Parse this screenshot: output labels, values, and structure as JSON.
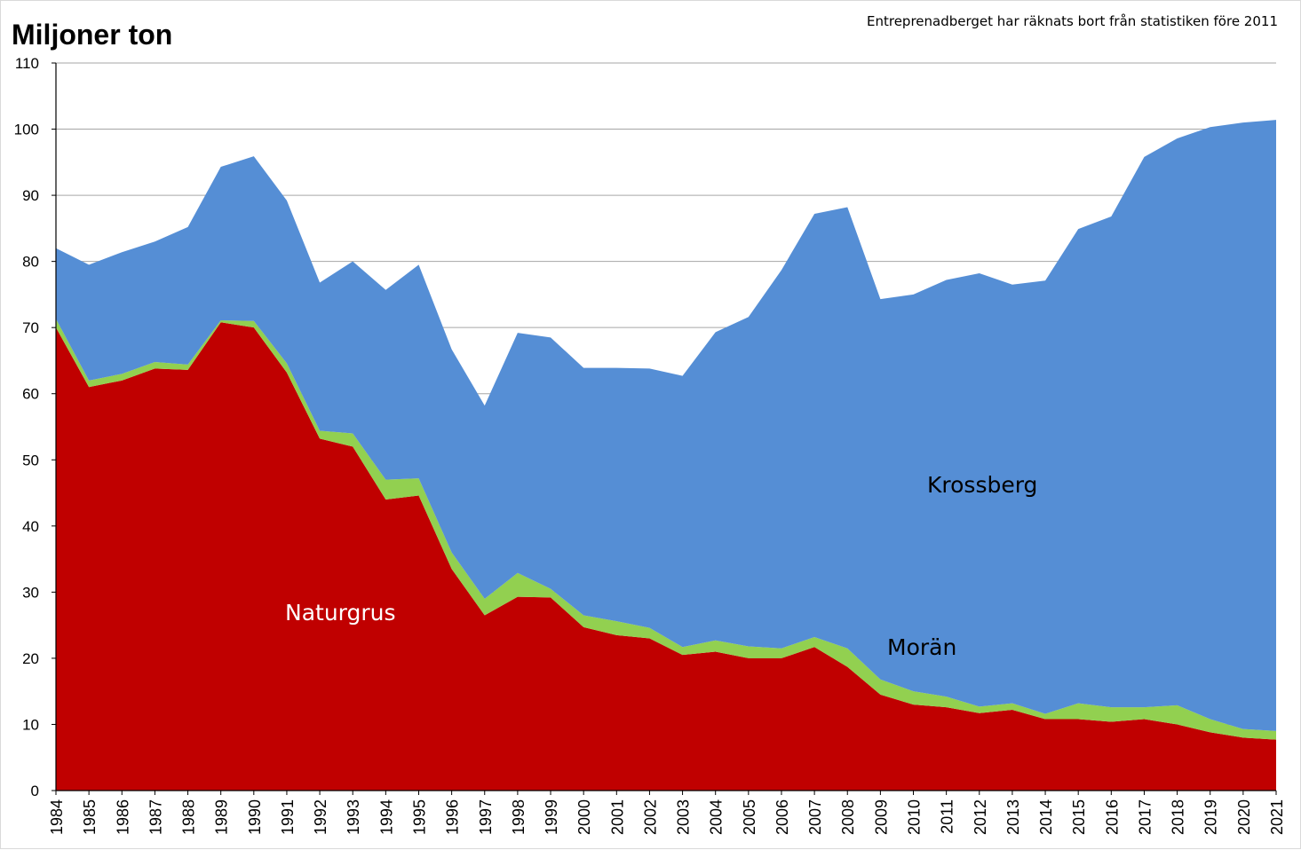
{
  "chart": {
    "title": "Miljoner ton",
    "note": "Entreprenadberget har räknats bort från statistiken före 2011"
  },
  "colors": {
    "naturgrus": "#c00000",
    "moran": "#92d050",
    "krossberg": "#558ed5",
    "grid": "#a6a6a6",
    "axis": "#000000"
  },
  "chart_data": {
    "type": "area",
    "stacked": true,
    "title": "Miljoner ton",
    "note": "Entreprenadberget har räknats bort från statistiken före 2011",
    "xlabel": "",
    "ylabel": "Miljoner ton",
    "ylim": [
      0,
      110
    ],
    "yticks": [
      0,
      10,
      20,
      30,
      40,
      50,
      60,
      70,
      80,
      90,
      100,
      110
    ],
    "grid": true,
    "legend": "none",
    "x": [
      "1984",
      "1985",
      "1986",
      "1987",
      "1988",
      "1989",
      "1990",
      "1991",
      "1992",
      "1993",
      "1994",
      "1995",
      "1996",
      "1997",
      "1998",
      "1999",
      "2000",
      "2001",
      "2002",
      "2003",
      "2004",
      "2005",
      "2006",
      "2007",
      "2008",
      "2009",
      "2010",
      "2011",
      "2012",
      "2013",
      "2014",
      "2015",
      "2016",
      "2017",
      "2018",
      "2019",
      "2020",
      "2021"
    ],
    "series": [
      {
        "name": "Naturgrus",
        "color": "#c00000",
        "values": [
          70,
          61,
          62,
          63.8,
          63.6,
          70.8,
          70,
          63.2,
          53.2,
          52,
          44,
          44.6,
          33.5,
          26.5,
          29.3,
          29.2,
          24.7,
          23.5,
          23,
          20.5,
          21,
          20,
          20,
          21.7,
          18.7,
          14.5,
          13,
          12.6,
          11.7,
          12.2,
          10.8,
          10.8,
          10.4,
          10.8,
          10,
          8.8,
          8,
          7.7
        ]
      },
      {
        "name": "Morän",
        "color": "#92d050",
        "values": [
          1.3,
          1,
          1,
          1,
          0.8,
          0.3,
          1,
          1.4,
          1.2,
          2,
          3,
          2.6,
          2.5,
          2.5,
          3.6,
          1.3,
          1.8,
          2.1,
          1.6,
          1.2,
          1.7,
          1.8,
          1.5,
          1.5,
          2.8,
          2.3,
          2,
          1.6,
          1,
          1,
          0.8,
          2.4,
          2.2,
          1.8,
          2.9,
          2,
          1.3,
          1.3
        ]
      },
      {
        "name": "Krossberg",
        "color": "#558ed5",
        "values": [
          10.7,
          17.5,
          18.4,
          18.2,
          20.8,
          23.2,
          24.9,
          24.6,
          22.4,
          26,
          28.7,
          32.3,
          30.7,
          29.2,
          36.3,
          38,
          37.4,
          38.3,
          39.2,
          41,
          46.6,
          49.8,
          57.2,
          64,
          66.7,
          57.5,
          60,
          63,
          65.5,
          63.3,
          65.5,
          71.7,
          74.2,
          83.2,
          85.7,
          89.5,
          91.7,
          92.4
        ]
      }
    ],
    "annotations": [
      "Krossberg",
      "Morän",
      "Naturgrus"
    ]
  }
}
